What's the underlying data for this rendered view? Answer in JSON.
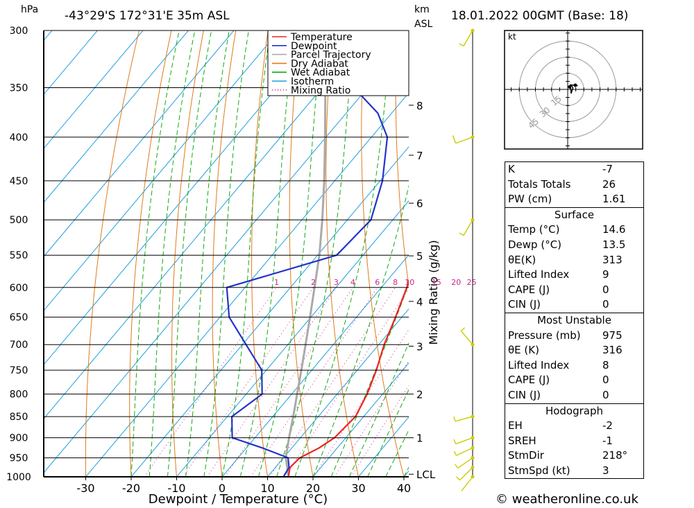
{
  "header": {
    "location": "-43°29'S 172°31'E 35m ASL",
    "datetime": "18.01.2022 00GMT (Base: 18)",
    "pressure_unit": "hPa",
    "km_unit": "km",
    "asl_unit": "ASL"
  },
  "chart_data": {
    "type": "skew-t log-p sounding",
    "xlabel": "Dewpoint / Temperature (°C)",
    "ylabel_right": "Mixing Ratio (g/kg)",
    "xlim": [
      -40,
      40
    ],
    "ylim_hpa": [
      1000,
      300
    ],
    "pressure_ticks": [
      300,
      350,
      400,
      450,
      500,
      550,
      600,
      650,
      700,
      750,
      800,
      850,
      900,
      950,
      1000
    ],
    "temperature_ticks": [
      -30,
      -20,
      -10,
      0,
      10,
      20,
      30,
      40
    ],
    "height_ticks_km": [
      {
        "label": "8",
        "p": 367
      },
      {
        "label": "7",
        "p": 420
      },
      {
        "label": "6",
        "p": 478
      },
      {
        "label": "5",
        "p": 551
      },
      {
        "label": "4",
        "p": 623
      },
      {
        "label": "3",
        "p": 703
      },
      {
        "label": "2",
        "p": 800
      },
      {
        "label": "1",
        "p": 900
      },
      {
        "label": "LCL",
        "p": 993
      }
    ],
    "mixing_ratio_labels": [
      "1",
      "2",
      "3",
      "4",
      "6",
      "8",
      "10",
      "15",
      "20",
      "25"
    ],
    "mixing_ratio_values": [
      1,
      2,
      3,
      4,
      6,
      8,
      10,
      15,
      20,
      25
    ],
    "legend": [
      "Temperature",
      "Dewpoint",
      "Parcel Trajectory",
      "Dry Adiabat",
      "Wet Adiabat",
      "Isotherm",
      "Mixing Ratio"
    ],
    "series": [
      {
        "name": "Temperature",
        "color": "#ee2222",
        "points": [
          [
            1000,
            14.6
          ],
          [
            975,
            13.2
          ],
          [
            950,
            13.6
          ],
          [
            925,
            16
          ],
          [
            900,
            17.5
          ],
          [
            850,
            18.2
          ],
          [
            800,
            16.6
          ],
          [
            750,
            14.2
          ],
          [
            700,
            11.2
          ],
          [
            650,
            8.6
          ],
          [
            600,
            5.6
          ],
          [
            550,
            2.0
          ],
          [
            500,
            -1.5
          ],
          [
            450,
            -6.5
          ],
          [
            400,
            -13.3
          ],
          [
            350,
            -20.8
          ],
          [
            300,
            -29.6
          ]
        ]
      },
      {
        "name": "Dewpoint",
        "color": "#2233cc",
        "points": [
          [
            1000,
            13.5
          ],
          [
            975,
            13.0
          ],
          [
            950,
            11.0
          ],
          [
            925,
            3.5
          ],
          [
            900,
            -5.0
          ],
          [
            850,
            -9.0
          ],
          [
            800,
            -6.5
          ],
          [
            750,
            -11
          ],
          [
            700,
            -19.2
          ],
          [
            650,
            -28
          ],
          [
            600,
            -34
          ],
          [
            550,
            -15.8
          ],
          [
            500,
            -14.8
          ],
          [
            450,
            -19.5
          ],
          [
            400,
            -26.5
          ],
          [
            375,
            -33
          ],
          [
            350,
            -43
          ],
          [
            300,
            -54.8
          ]
        ]
      },
      {
        "name": "Parcel Trajectory",
        "color": "#aaaaaa",
        "points": [
          [
            1000,
            14.6
          ],
          [
            975,
            12.6
          ],
          [
            950,
            10.5
          ],
          [
            900,
            7.5
          ],
          [
            850,
            4.5
          ],
          [
            800,
            1.2
          ],
          [
            750,
            -2.3
          ],
          [
            700,
            -6.1
          ],
          [
            650,
            -10.2
          ],
          [
            600,
            -14.7
          ],
          [
            550,
            -19.6
          ],
          [
            500,
            -25.5
          ],
          [
            450,
            -32.3
          ],
          [
            400,
            -40.2
          ],
          [
            350,
            -49.3
          ],
          [
            300,
            -59.7
          ]
        ]
      }
    ],
    "wind_barbs": [
      {
        "p": 1000,
        "dir": 218,
        "speed_kt": 3
      },
      {
        "p": 975,
        "dir": 225,
        "speed_kt": 5
      },
      {
        "p": 950,
        "dir": 235,
        "speed_kt": 5
      },
      {
        "p": 925,
        "dir": 245,
        "speed_kt": 5
      },
      {
        "p": 900,
        "dir": 250,
        "speed_kt": 5
      },
      {
        "p": 850,
        "dir": 255,
        "speed_kt": 5
      },
      {
        "p": 700,
        "dir": 320,
        "speed_kt": 5
      },
      {
        "p": 500,
        "dir": 210,
        "speed_kt": 5
      },
      {
        "p": 400,
        "dir": 250,
        "speed_kt": 10
      },
      {
        "p": 300,
        "dir": 210,
        "speed_kt": 5
      }
    ],
    "hodograph": {
      "unit": "kt",
      "ring_labels": [
        "15",
        "30",
        "45"
      ],
      "rings_kt": [
        15,
        30,
        45
      ]
    }
  },
  "indices": {
    "k_label": "K",
    "k_value": "-7",
    "tt_label": "Totals Totals",
    "tt_value": "26",
    "pw_label": "PW (cm)",
    "pw_value": "1.61"
  },
  "surface": {
    "title": "Surface",
    "temp_label": "Temp (°C)",
    "temp_value": "14.6",
    "dewp_label": "Dewp (°C)",
    "dewp_value": "13.5",
    "thetae_label": "θE(K)",
    "thetae_value": "313",
    "li_label": "Lifted Index",
    "li_value": "9",
    "cape_label": "CAPE (J)",
    "cape_value": "0",
    "cin_label": "CIN (J)",
    "cin_value": "0"
  },
  "most_unstable": {
    "title": "Most Unstable",
    "pressure_label": "Pressure (mb)",
    "pressure_value": "975",
    "thetae_label": "θE (K)",
    "thetae_value": "316",
    "li_label": "Lifted Index",
    "li_value": "8",
    "cape_label": "CAPE (J)",
    "cape_value": "0",
    "cin_label": "CIN (J)",
    "cin_value": "0"
  },
  "hodograph_table": {
    "title": "Hodograph",
    "eh_label": "EH",
    "eh_value": "-2",
    "sreh_label": "SREH",
    "sreh_value": "-1",
    "stmdir_label": "StmDir",
    "stmdir_value": "218°",
    "stmspd_label": "StmSpd (kt)",
    "stmspd_value": "3"
  },
  "footer": {
    "credit": "© weatheronline.co.uk"
  },
  "colors": {
    "temperature": "#ee2222",
    "dewpoint": "#2233cc",
    "parcel": "#aaaaaa",
    "dry_adiabat": "#e07a1a",
    "wet_adiabat": "#11aa11",
    "isotherm": "#1e9fe0",
    "mixing_ratio": "#cc2288",
    "wind_barb": "#cccc00"
  }
}
